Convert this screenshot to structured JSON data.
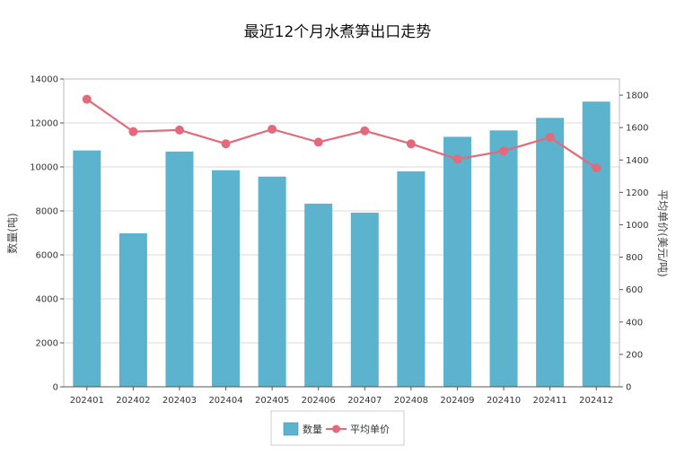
{
  "chart_data": {
    "type": "bar",
    "title": "最近12个月水煮笋出口走势",
    "categories": [
      "202401",
      "202402",
      "202403",
      "202404",
      "202405",
      "202406",
      "202407",
      "202408",
      "202409",
      "202410",
      "202411",
      "202412"
    ],
    "series": [
      {
        "name": "数量",
        "type": "bar",
        "axis": "left",
        "color": "#5BB3CD",
        "values": [
          10750,
          6980,
          10700,
          9850,
          9560,
          8330,
          7920,
          9800,
          11370,
          11660,
          12230,
          12970
        ]
      },
      {
        "name": "平均单价",
        "type": "line",
        "axis": "right",
        "color": "#E26A7B",
        "values": [
          1775,
          1575,
          1585,
          1500,
          1590,
          1510,
          1580,
          1500,
          1405,
          1455,
          1540,
          1350
        ]
      }
    ],
    "ylabel_left": "数量(吨)",
    "ylabel_right": "平均单价(美元/吨)",
    "ylim_left": [
      0,
      14000
    ],
    "yticks_left": [
      0,
      2000,
      4000,
      6000,
      8000,
      10000,
      12000,
      14000
    ],
    "ylim_right": [
      0,
      1900
    ],
    "yticks_right": [
      0,
      200,
      400,
      600,
      800,
      1000,
      1200,
      1400,
      1600,
      1800
    ],
    "grid": true,
    "legend_position": "bottom-center"
  }
}
